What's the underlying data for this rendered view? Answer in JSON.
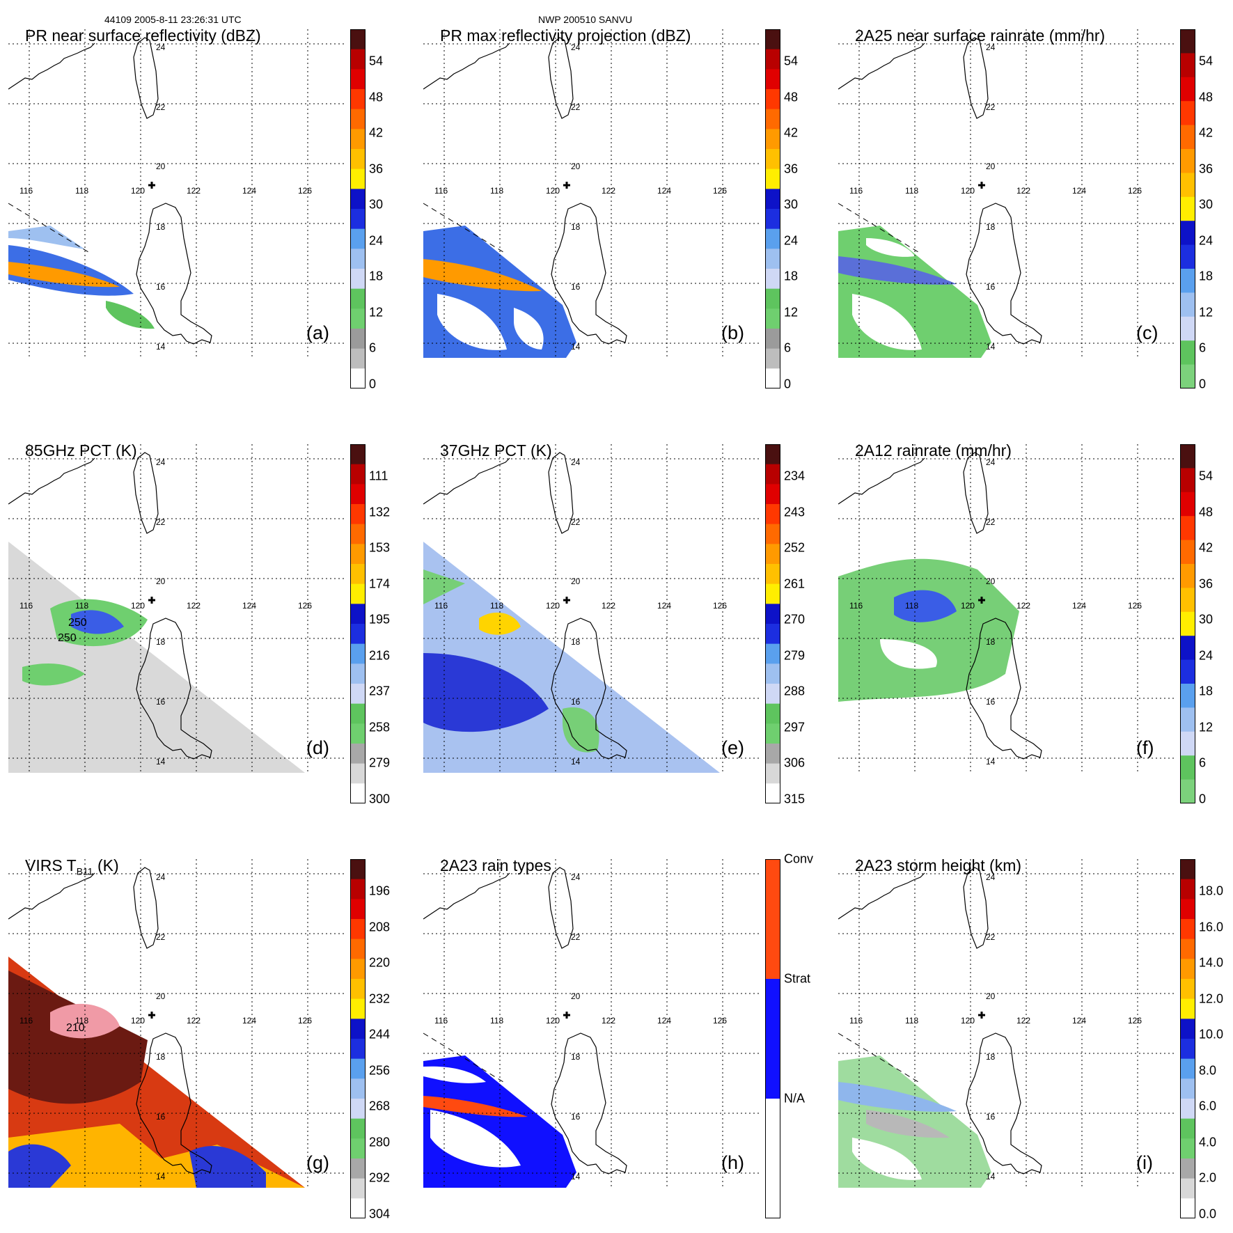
{
  "header": {
    "left": "44109 2005-8-11 23:26:31 UTC",
    "center": "NWP 200510 SANVU"
  },
  "map_labels": {
    "lon": [
      "116",
      "118",
      "120",
      "122",
      "124",
      "126"
    ],
    "lat": [
      "24",
      "22",
      "20",
      "18",
      "16",
      "14"
    ]
  },
  "panels": [
    {
      "title": "PR near surface reflectivity (dBZ)",
      "label": "(a)",
      "field": "narrow",
      "colorbar": {
        "scheme": "dbz",
        "ticks": [
          "54",
          "48",
          "42",
          "36",
          "30",
          "24",
          "18",
          "12",
          "6",
          "0"
        ]
      }
    },
    {
      "title": "PR max reflectivity projection (dBZ)",
      "label": "(b)",
      "field": "narrow",
      "colorbar": {
        "scheme": "dbz",
        "ticks": [
          "54",
          "48",
          "42",
          "36",
          "30",
          "24",
          "18",
          "12",
          "6",
          "0"
        ]
      }
    },
    {
      "title": "2A25 near surface rainrate (mm/hr)",
      "label": "(c)",
      "field": "narrow",
      "colorbar": {
        "scheme": "rain",
        "ticks": [
          "54",
          "48",
          "42",
          "36",
          "30",
          "24",
          "18",
          "12",
          "6",
          "0"
        ]
      }
    },
    {
      "title": "85GHz PCT (K)",
      "label": "(d)",
      "field": "wide",
      "colorbar": {
        "scheme": "pct",
        "ticks": [
          "111",
          "132",
          "153",
          "174",
          "195",
          "216",
          "237",
          "258",
          "279",
          "300"
        ]
      }
    },
    {
      "title": "37GHz PCT (K)",
      "label": "(e)",
      "field": "wide",
      "colorbar": {
        "scheme": "pct",
        "ticks": [
          "234",
          "243",
          "252",
          "261",
          "270",
          "279",
          "288",
          "297",
          "306",
          "315"
        ]
      }
    },
    {
      "title": "2A12 rainrate (mm/hr)",
      "label": "(f)",
      "field": "wide",
      "colorbar": {
        "scheme": "rain",
        "ticks": [
          "54",
          "48",
          "42",
          "36",
          "30",
          "24",
          "18",
          "12",
          "6",
          "0"
        ]
      }
    },
    {
      "title": "VIRS T",
      "title_sub": "B11",
      "title_suffix": " (K)",
      "label": "(g)",
      "field": "wide",
      "colorbar": {
        "scheme": "virs",
        "ticks": [
          "196",
          "208",
          "220",
          "232",
          "244",
          "256",
          "268",
          "280",
          "292",
          "304"
        ]
      }
    },
    {
      "title": "2A23 rain types",
      "label": "(h)",
      "field": "narrow",
      "colorbar": {
        "scheme": "types",
        "ticks": [
          "Conv",
          "Strat",
          "N/A"
        ]
      }
    },
    {
      "title": "2A23 storm height (km)",
      "label": "(i)",
      "field": "narrow",
      "colorbar": {
        "scheme": "height",
        "ticks": [
          "18.0",
          "16.0",
          "14.0",
          "12.0",
          "10.0",
          "8.0",
          "6.0",
          "4.0",
          "2.0",
          "0.0"
        ]
      }
    }
  ],
  "contour_labels": {
    "d": [
      "250",
      "250"
    ],
    "g": [
      "210"
    ]
  },
  "colors": {
    "dbz": [
      "#ffffff",
      "#e6e6e6",
      "#bdbdbd",
      "#9b9b9b",
      "#7cd27c",
      "#5ec45e",
      "#cfd8f5",
      "#9ec0f0",
      "#5aa0ee",
      "#3c6ee6",
      "#1c2ee0",
      "#0d12c8",
      "#ffee00",
      "#ffc000",
      "#ff9a00",
      "#ff6a00",
      "#ff3800",
      "#e00000",
      "#b80000",
      "#7a1010",
      "#4a1010"
    ],
    "rain": [
      "#7cd27c",
      "#5ec45e",
      "#cfd8f5",
      "#9ec0f0",
      "#5aa0ee",
      "#3c6ee6",
      "#1c2ee0",
      "#0d12c8",
      "#ffee00",
      "#ffc000",
      "#ff9a00",
      "#ff6a00",
      "#ff3800",
      "#e00000",
      "#b80000",
      "#7a1010",
      "#4a1010"
    ],
    "types": [
      "#ffffff",
      "#1010ff",
      "#ff4a10"
    ]
  }
}
